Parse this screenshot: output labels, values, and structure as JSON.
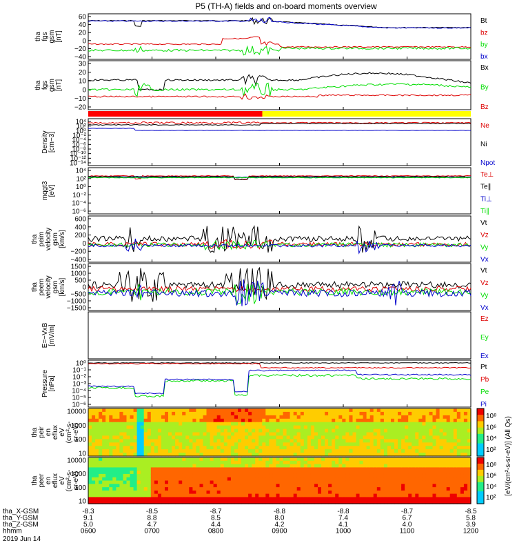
{
  "title": "P5 (TH-A) fields and on-board moments overview",
  "colors": {
    "black": "#000000",
    "red": "#dd0000",
    "green": "#00dd00",
    "blue": "#0000cc",
    "bar_red": "#ff0000",
    "bar_yellow": "#ffff00"
  },
  "chart_data": [
    {
      "type": "line",
      "ylabel": "tha\nfgs\ngsm\n[nT]",
      "yticks": [
        "60",
        "40",
        "20",
        "0",
        "−20",
        "−40"
      ],
      "ylim": [
        -40,
        60
      ],
      "legend": [
        {
          "name": "Bt",
          "color": "black"
        },
        {
          "name": "bz",
          "color": "red"
        },
        {
          "name": "by",
          "color": "green"
        },
        {
          "name": "bx",
          "color": "blue"
        }
      ]
    },
    {
      "type": "line",
      "ylabel": "tha\nfgs\ngsm\n[nT]",
      "yticks": [
        "30",
        "20",
        "10",
        "0",
        "−10",
        "−20"
      ],
      "ylim": [
        -25,
        30
      ],
      "legend": [
        {
          "name": "Bx",
          "color": "black"
        },
        {
          "name": "By",
          "color": "green"
        },
        {
          "name": "Bz",
          "color": "red"
        }
      ]
    },
    {
      "type": "line",
      "ylabel": "Density\n[cm−3]",
      "yticks": [
        "10⁴",
        "10²",
        "10⁰",
        "10⁻²",
        "10⁻⁴",
        "10⁻⁶",
        "10⁻⁸",
        "10⁻¹⁰",
        "10⁻¹²",
        "10⁻¹⁴"
      ],
      "legend": [
        {
          "name": "Ne",
          "color": "red"
        },
        {
          "name": "Ni",
          "color": "black"
        },
        {
          "name": "Npot",
          "color": "blue"
        }
      ]
    },
    {
      "type": "line",
      "ylabel": "mqgt3\n[eV]",
      "yticks": [
        "10⁴",
        "10²",
        "10⁰",
        "10⁻²",
        "10⁻⁴",
        "10⁻⁶"
      ],
      "legend": [
        {
          "name": "Te⊥",
          "color": "red"
        },
        {
          "name": "Te∥",
          "color": "black"
        },
        {
          "name": "Ti⊥",
          "color": "blue"
        },
        {
          "name": "Ti∥",
          "color": "green"
        }
      ]
    },
    {
      "type": "line",
      "ylabel": "tha\npeim\nvelocity\ngsm\n[km/s]",
      "yticks": [
        "600",
        "400",
        "200",
        "0",
        "−200",
        "−400"
      ],
      "ylim": [
        -400,
        650
      ],
      "legend": [
        {
          "name": "Vt",
          "color": "black"
        },
        {
          "name": "Vz",
          "color": "red"
        },
        {
          "name": "Vy",
          "color": "green"
        },
        {
          "name": "Vx",
          "color": "blue"
        }
      ]
    },
    {
      "type": "line",
      "ylabel": "tha\npeem\nvelocity\ngsm\n[km/s]",
      "yticks": [
        "1500",
        "1000",
        "500",
        "0",
        "−500",
        "−1000",
        "−1500"
      ],
      "ylim": [
        -1500,
        1500
      ],
      "legend": [
        {
          "name": "Vt",
          "color": "black"
        },
        {
          "name": "Vz",
          "color": "red"
        },
        {
          "name": "Vy",
          "color": "green"
        },
        {
          "name": "Vx",
          "color": "blue"
        }
      ]
    },
    {
      "type": "line",
      "ylabel": "E=−VxB\n[mV/m]",
      "yticks": [],
      "legend": [
        {
          "name": "Ez",
          "color": "red"
        },
        {
          "name": "Ey",
          "color": "green"
        },
        {
          "name": "Ex",
          "color": "blue"
        }
      ]
    },
    {
      "type": "line",
      "ylabel": "Pressure\n[nPa]",
      "yticks": [
        "10⁰",
        "10⁻¹",
        "10⁻²",
        "10⁻³",
        "10⁻⁴",
        "10⁻⁵",
        "10⁻⁶"
      ],
      "legend": [
        {
          "name": "Pt",
          "color": "black"
        },
        {
          "name": "Pb",
          "color": "red"
        },
        {
          "name": "Pe",
          "color": "green"
        },
        {
          "name": "Pi",
          "color": "blue"
        }
      ]
    },
    {
      "type": "heatmap",
      "ylabel": "tha\npeir\nen\neflux\neV\n(cm²-s-\nsr-eV)",
      "yticks": [
        "10000",
        "1000",
        "100",
        "10"
      ]
    },
    {
      "type": "heatmap",
      "ylabel": "tha\npeer\nen\neflux\neV\n(cm²-s-\nsr-eV)",
      "yticks": [
        "10000",
        "1000",
        "100",
        "10"
      ]
    }
  ],
  "colorbar": {
    "label": "[eV/(cm²-s-sr-eV)] (All Qs)",
    "upper_ticks": [
      "10⁸",
      "10⁶",
      "10⁴",
      "10²"
    ],
    "lower_ticks": [
      "10⁸",
      "10⁶",
      "10⁴",
      "10²"
    ]
  },
  "x_axis": {
    "rows": [
      {
        "label": "tha_X-GSM",
        "values": [
          "-8.3",
          "-8.5",
          "-8.7",
          "-8.8",
          "-8.8",
          "-8.7",
          "-8.5"
        ]
      },
      {
        "label": "tha_Y-GSM",
        "values": [
          "9.1",
          "8.8",
          "8.5",
          "8.0",
          "7.4",
          "6.7",
          "5.8"
        ]
      },
      {
        "label": "tha_Z-GSM",
        "values": [
          "5.0",
          "4.7",
          "4.4",
          "4.2",
          "4.1",
          "4.0",
          "3.9"
        ]
      },
      {
        "label": "hhmm",
        "values": [
          "0600",
          "0700",
          "0800",
          "0900",
          "1000",
          "1100",
          "1200"
        ]
      }
    ],
    "date": "2019 Jun 14"
  }
}
